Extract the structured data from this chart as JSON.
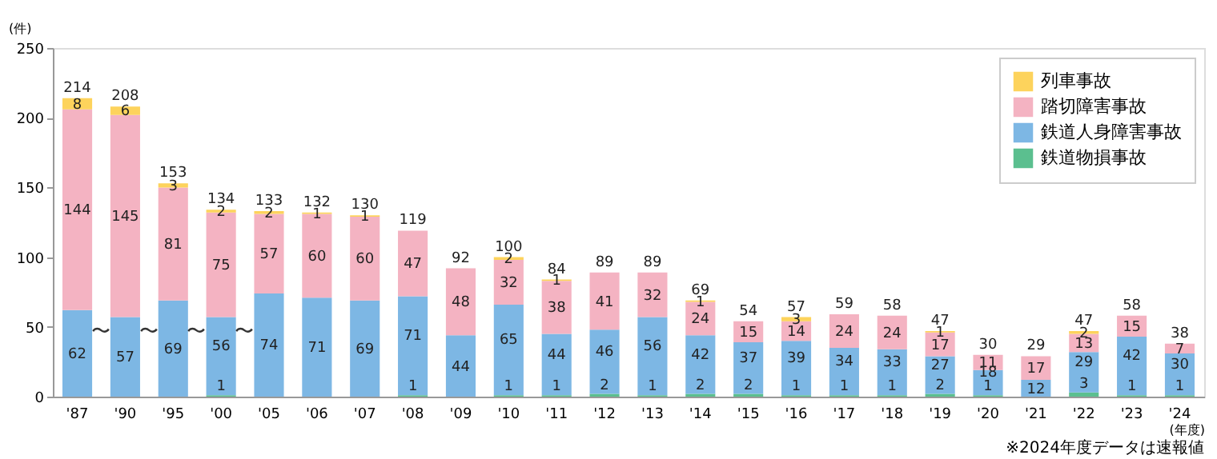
{
  "chart_data": {
    "type": "bar",
    "stacked": true,
    "ylabel": "(件)",
    "xlabel": "(年度)",
    "categories": [
      "'87",
      "'90",
      "'95",
      "'00",
      "'05",
      "'06",
      "'07",
      "'08",
      "'09",
      "'10",
      "'11",
      "'12",
      "'13",
      "'14",
      "'15",
      "'16",
      "'17",
      "'18",
      "'19",
      "'20",
      "'21",
      "'22",
      "'23",
      "'24"
    ],
    "series": [
      {
        "name": "鉄道物損事故",
        "color": "#5bbf8f",
        "values": [
          null,
          null,
          null,
          1,
          null,
          null,
          null,
          1,
          null,
          1,
          1,
          2,
          1,
          2,
          2,
          1,
          1,
          1,
          2,
          1,
          null,
          3,
          1,
          1
        ]
      },
      {
        "name": "鉄道人身障害事故",
        "color": "#7db7e4",
        "values": [
          62,
          57,
          69,
          56,
          74,
          71,
          69,
          71,
          44,
          65,
          44,
          46,
          56,
          42,
          37,
          39,
          34,
          33,
          27,
          18,
          12,
          29,
          42,
          30
        ]
      },
      {
        "name": "踏切障害事故",
        "color": "#f4b3c2",
        "values": [
          144,
          145,
          81,
          75,
          57,
          60,
          60,
          47,
          48,
          32,
          38,
          41,
          32,
          24,
          15,
          14,
          24,
          24,
          17,
          11,
          17,
          13,
          15,
          7
        ]
      },
      {
        "name": "列車事故",
        "color": "#fdd35c",
        "values": [
          8,
          6,
          3,
          2,
          2,
          1,
          1,
          null,
          null,
          2,
          1,
          null,
          null,
          1,
          null,
          3,
          null,
          null,
          1,
          null,
          null,
          2,
          null,
          null
        ]
      }
    ],
    "totals": [
      "214",
      "208",
      "153",
      "134",
      "133",
      "132",
      "130",
      "119",
      "92",
      "100",
      "84",
      "89",
      "89",
      "69",
      "54",
      "57",
      "59",
      "58",
      "47",
      "30",
      "29",
      "47",
      "58",
      "38"
    ],
    "data_labels": true,
    "ylim": [
      0,
      250
    ],
    "yticks": [
      0,
      50,
      100,
      150,
      200,
      250
    ],
    "grid": false,
    "legend": "top right",
    "annotations": [
      "〜",
      "〜",
      "〜",
      "〜",
      "※2024年度データは速報値"
    ]
  }
}
